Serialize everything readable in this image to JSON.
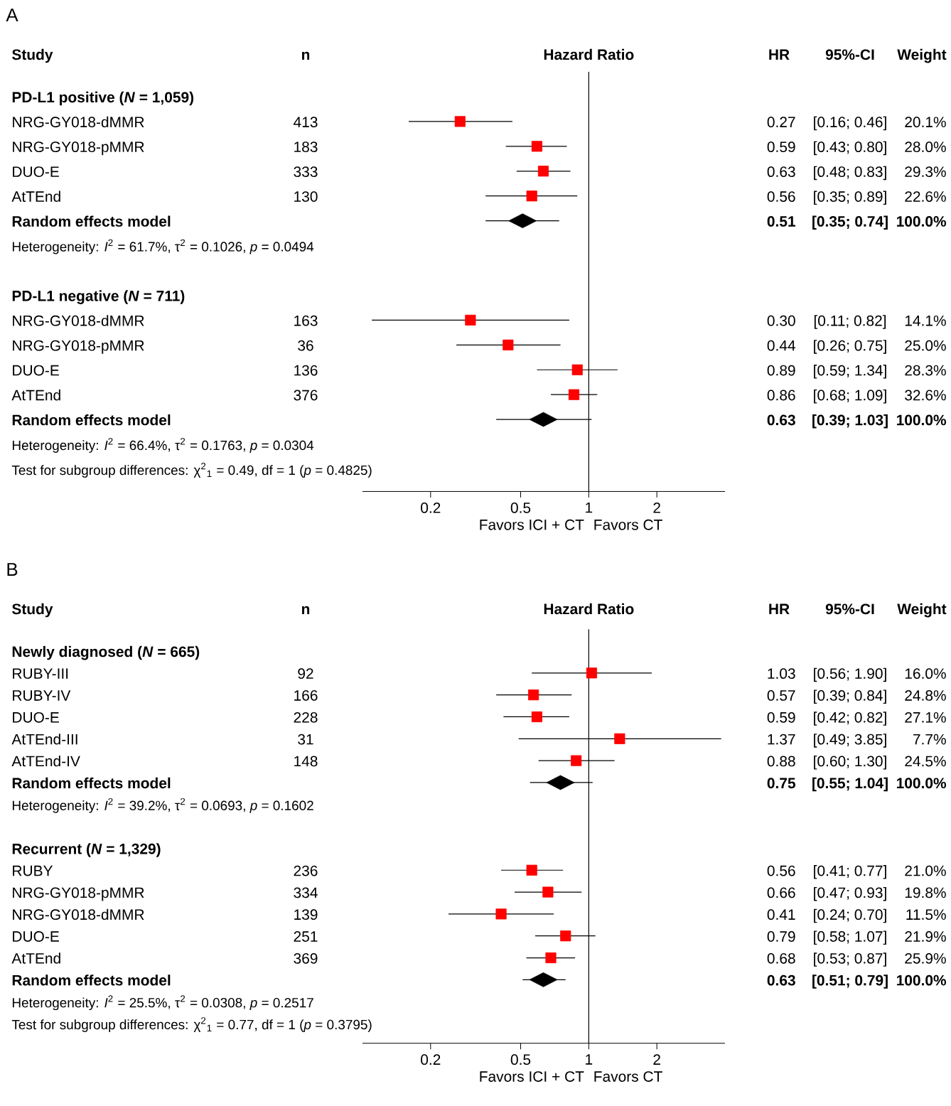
{
  "chart_data": [
    {
      "type": "scatter",
      "orientation": "horizontal",
      "title": "A",
      "log": "x",
      "xlim": [
        0.1,
        4
      ],
      "xticks": [
        0.2,
        0.5,
        1,
        2
      ],
      "ref_lines": [
        {
          "axis": "x",
          "value": 1
        }
      ],
      "categories": [
        "PD-L1 positive (*N* = 1,059)",
        "NRG-GY018-dMMR",
        "NRG-GY018-pMMR",
        "DUO-E",
        "AtTEnd",
        "Random effects model",
        "Heterogeneity: *I*$^{2}$ = 61.7%, τ$^{2}$ = 0.1026, *p* = 0.0494",
        null,
        "PD-L1 negative (*N* = 711)",
        "NRG-GY018-dMMR",
        "NRG-GY018-pMMR",
        "DUO-E",
        "AtTEnd",
        "Random effects model",
        "Heterogeneity: *I*$^{2}$ = 66.4%, τ$^{2}$ = 0.1763, *p* = 0.0304",
        "Test for subgroup differences: χ$^{2}$$_{1}$ = 0.49, df = 1 (*p* = 0.4825)"
      ],
      "series": [
        {
          "marker": "square",
          "color": "#ff0000",
          "values": [
            null,
            0.27,
            0.59,
            0.63,
            0.56,
            null,
            null,
            null,
            null,
            0.3,
            0.44,
            0.89,
            0.86,
            null,
            null,
            null
          ],
          "errors": [
            null,
            [
              0.16,
              0.46
            ],
            [
              0.43,
              0.8
            ],
            [
              0.48,
              0.83
            ],
            [
              0.35,
              0.89
            ],
            null,
            null,
            null,
            null,
            [
              0.11,
              0.82
            ],
            [
              0.26,
              0.75
            ],
            [
              0.59,
              1.34
            ],
            [
              0.68,
              1.09
            ],
            null,
            null,
            null
          ],
          "value_labels": [
            null,
            "0.27",
            "0.59",
            "0.63",
            "0.56",
            null,
            null,
            null,
            null,
            "0.30",
            "0.44",
            "0.89",
            "0.86",
            null,
            null,
            null
          ]
        },
        {
          "marker": "diamond",
          "color": "#000000",
          "values": [
            null,
            null,
            null,
            null,
            null,
            0.51,
            null,
            null,
            null,
            null,
            null,
            null,
            null,
            0.63,
            null,
            null
          ],
          "errors": [
            null,
            null,
            null,
            null,
            null,
            [
              0.35,
              0.74
            ],
            null,
            null,
            null,
            null,
            null,
            null,
            null,
            [
              0.39,
              1.03
            ],
            null,
            null
          ]
        }
      ],
      "annotations": [
        "Study",
        "n",
        "Hazard Ratio",
        "HR",
        "95%-CI",
        "Weight",
        "Favors ICI + CT",
        "Favors CT",
        "413",
        "[0.16; 0.46]",
        "20.1%",
        "183",
        "[0.43; 0.80]",
        "28.0%",
        "333",
        "[0.48; 0.83]",
        "29.3%",
        "130",
        "[0.35; 0.89]",
        "22.6%",
        "0.51",
        "[0.35; 0.74]",
        "100.0%",
        "163",
        "[0.11; 0.82]",
        "14.1%",
        "36",
        "[0.26; 0.75]",
        "25.0%",
        "136",
        "[0.59; 1.34]",
        "28.3%",
        "376",
        "[0.68; 1.09]",
        "32.6%",
        "0.63",
        "[0.39; 1.03]",
        "100.0%"
      ]
    },
    {
      "type": "scatter",
      "orientation": "horizontal",
      "title": "B",
      "log": "x",
      "xlim": [
        0.1,
        4
      ],
      "xticks": [
        0.2,
        0.5,
        1,
        2
      ],
      "ref_lines": [
        {
          "axis": "x",
          "value": 1
        }
      ],
      "categories": [
        "Newly diagnosed  (*N* = 665)",
        "RUBY-III",
        "RUBY-IV",
        "DUO-E",
        "AtTEnd-III",
        "AtTEnd-IV",
        "Random effects model",
        "Heterogeneity: *I*$^{2}$ = 39.2%, τ$^{2}$ = 0.0693, *p* = 0.1602",
        null,
        "Recurrent  (*N* = 1,329)",
        "RUBY",
        "NRG-GY018-pMMR",
        "NRG-GY018-dMMR",
        "DUO-E",
        "AtTEnd",
        "Random effects model",
        "Heterogeneity: *I*$^{2}$ = 25.5%, τ$^{2}$ = 0.0308, *p* = 0.2517",
        "Test for subgroup differences: χ$^{2}$$_{1}$ = 0.77, df = 1 (*p* = 0.3795)"
      ],
      "series": [
        {
          "marker": "square",
          "color": "#ff0000",
          "values": [
            null,
            1.03,
            0.57,
            0.59,
            1.37,
            0.88,
            null,
            null,
            null,
            null,
            0.56,
            0.66,
            0.41,
            0.79,
            0.68,
            null,
            null,
            null
          ],
          "errors": [
            null,
            [
              0.56,
              1.9
            ],
            [
              0.39,
              0.84
            ],
            [
              0.42,
              0.82
            ],
            [
              0.49,
              3.85
            ],
            [
              0.6,
              1.3
            ],
            null,
            null,
            null,
            null,
            [
              0.41,
              0.77
            ],
            [
              0.47,
              0.93
            ],
            [
              0.24,
              0.7
            ],
            [
              0.58,
              1.07
            ],
            [
              0.53,
              0.87
            ],
            null,
            null,
            null
          ],
          "value_labels": [
            null,
            "1.03",
            "0.57",
            "0.59",
            "1.37",
            "0.88",
            null,
            null,
            null,
            null,
            "0.56",
            "0.66",
            "0.41",
            "0.79",
            "0.68",
            null,
            null,
            null
          ]
        },
        {
          "marker": "diamond",
          "color": "#000000",
          "values": [
            null,
            null,
            null,
            null,
            null,
            null,
            0.75,
            null,
            null,
            null,
            null,
            null,
            null,
            null,
            null,
            0.63,
            null,
            null
          ],
          "errors": [
            null,
            null,
            null,
            null,
            null,
            null,
            [
              0.55,
              1.04
            ],
            null,
            null,
            null,
            null,
            null,
            null,
            null,
            null,
            [
              0.51,
              0.79
            ],
            null,
            null
          ]
        }
      ],
      "annotations": [
        "Study",
        "n",
        "Hazard Ratio",
        "HR",
        "95%-CI",
        "Weight",
        "Favors ICI + CT",
        "Favors CT",
        "92",
        "[0.56; 1.90]",
        "16.0%",
        "166",
        "[0.39; 0.84]",
        "24.8%",
        "228",
        "[0.42; 0.82]",
        "27.1%",
        "31",
        "[0.49; 3.85]",
        "7.7%",
        "148",
        "[0.60; 1.30]",
        "24.5%",
        "0.75",
        "[0.55; 1.04]",
        "100.0%",
        "236",
        "[0.41; 0.77]",
        "21.0%",
        "334",
        "[0.47; 0.93]",
        "19.8%",
        "139",
        "[0.24; 0.70]",
        "11.5%",
        "251",
        "[0.58; 1.07]",
        "21.9%",
        "369",
        "[0.53; 0.87]",
        "25.9%",
        "0.63",
        "[0.51; 0.79]",
        "100.0%"
      ]
    }
  ]
}
